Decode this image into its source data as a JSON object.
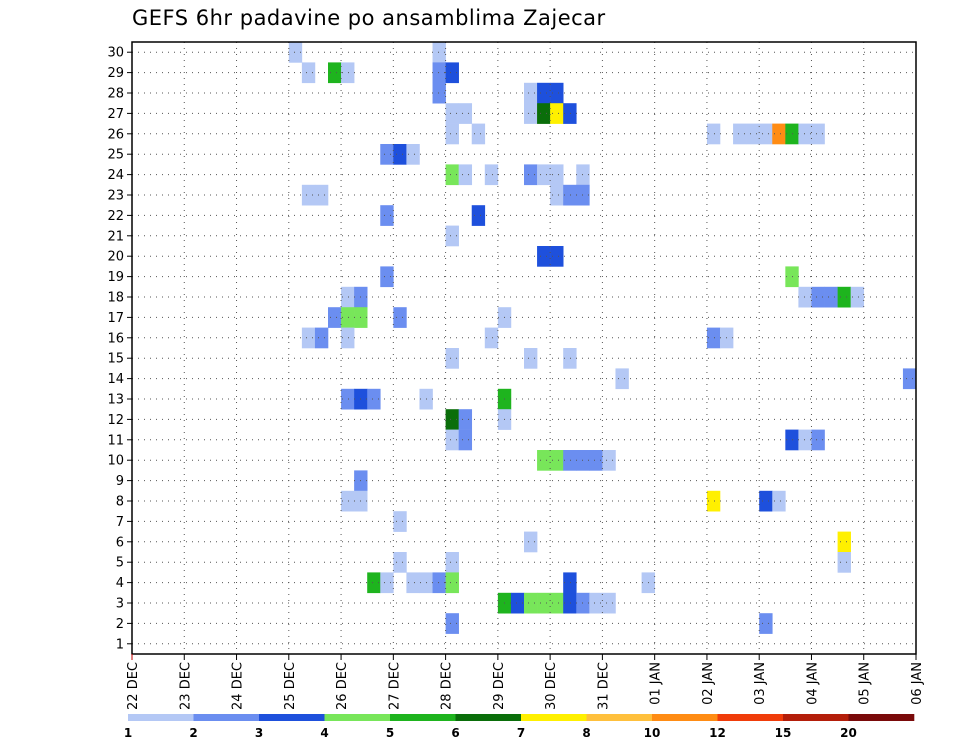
{
  "chart_data": {
    "type": "heatmap",
    "title": "GEFS 6hr padavine po ansamblima Zajecar",
    "x_tick_labels": [
      "22 DEC",
      "23 DEC",
      "24 DEC",
      "25 DEC",
      "26 DEC",
      "27 DEC",
      "28 DEC",
      "29 DEC",
      "30 DEC",
      "31 DEC",
      "01 JAN",
      "02 JAN",
      "03 JAN",
      "04 JAN",
      "05 JAN",
      "06 JAN"
    ],
    "time_step_hours": 6,
    "x_range_steps": [
      0,
      60
    ],
    "y_range_members": [
      1,
      30
    ],
    "y_tick_labels": [
      "1",
      "2",
      "3",
      "4",
      "5",
      "6",
      "7",
      "8",
      "9",
      "10",
      "11",
      "12",
      "13",
      "14",
      "15",
      "16",
      "17",
      "18",
      "19",
      "20",
      "21",
      "22",
      "23",
      "24",
      "25",
      "26",
      "27",
      "28",
      "29",
      "30"
    ],
    "grid": "dotted",
    "colorbar": {
      "position": "bottom",
      "labels": [
        "1",
        "2",
        "3",
        "4",
        "5",
        "6",
        "7",
        "8",
        "10",
        "12",
        "15",
        "20"
      ],
      "colors": [
        "#b4c8f5",
        "#6b8ef0",
        "#1e50dc",
        "#78e65a",
        "#1eb41e",
        "#0a6e0a",
        "#fff000",
        "#ffc03c",
        "#ff8c14",
        "#f03c0a",
        "#b41e0a",
        "#7a0a0a"
      ]
    },
    "level_thresholds": [
      1,
      2,
      3,
      4,
      5,
      6,
      7,
      8,
      10,
      12,
      15,
      20
    ],
    "cells": [
      [
        30,
        12,
        1
      ],
      [
        30,
        23,
        1
      ],
      [
        29,
        13,
        1
      ],
      [
        29,
        15,
        5
      ],
      [
        29,
        16,
        1
      ],
      [
        29,
        23,
        2
      ],
      [
        29,
        24,
        3
      ],
      [
        28,
        23,
        2
      ],
      [
        28,
        30,
        1
      ],
      [
        28,
        31,
        3
      ],
      [
        28,
        32,
        3
      ],
      [
        27,
        24,
        1
      ],
      [
        27,
        25,
        1
      ],
      [
        27,
        30,
        1
      ],
      [
        27,
        31,
        6
      ],
      [
        27,
        32,
        7
      ],
      [
        27,
        33,
        3
      ],
      [
        26,
        24,
        1
      ],
      [
        26,
        26,
        1
      ],
      [
        26,
        44,
        1
      ],
      [
        26,
        46,
        1
      ],
      [
        26,
        47,
        1
      ],
      [
        26,
        48,
        1
      ],
      [
        26,
        49,
        9
      ],
      [
        26,
        50,
        5
      ],
      [
        26,
        51,
        1
      ],
      [
        26,
        52,
        1
      ],
      [
        25,
        19,
        2
      ],
      [
        25,
        20,
        3
      ],
      [
        25,
        21,
        1
      ],
      [
        24,
        24,
        4
      ],
      [
        24,
        25,
        1
      ],
      [
        24,
        27,
        1
      ],
      [
        24,
        30,
        2
      ],
      [
        24,
        31,
        1
      ],
      [
        24,
        32,
        1
      ],
      [
        24,
        34,
        1
      ],
      [
        23,
        13,
        1
      ],
      [
        23,
        14,
        1
      ],
      [
        23,
        32,
        1
      ],
      [
        23,
        33,
        2
      ],
      [
        23,
        34,
        2
      ],
      [
        22,
        19,
        2
      ],
      [
        22,
        26,
        3
      ],
      [
        21,
        24,
        1
      ],
      [
        20,
        31,
        3
      ],
      [
        20,
        32,
        3
      ],
      [
        19,
        19,
        2
      ],
      [
        19,
        50,
        4
      ],
      [
        18,
        16,
        1
      ],
      [
        18,
        17,
        2
      ],
      [
        18,
        51,
        1
      ],
      [
        18,
        52,
        2
      ],
      [
        18,
        53,
        2
      ],
      [
        18,
        54,
        5
      ],
      [
        18,
        55,
        1
      ],
      [
        17,
        15,
        2
      ],
      [
        17,
        16,
        4
      ],
      [
        17,
        17,
        4
      ],
      [
        17,
        20,
        2
      ],
      [
        17,
        28,
        1
      ],
      [
        16,
        13,
        1
      ],
      [
        16,
        14,
        2
      ],
      [
        16,
        16,
        1
      ],
      [
        16,
        27,
        1
      ],
      [
        16,
        44,
        2
      ],
      [
        16,
        45,
        1
      ],
      [
        15,
        24,
        1
      ],
      [
        15,
        30,
        1
      ],
      [
        15,
        33,
        1
      ],
      [
        14,
        37,
        1
      ],
      [
        14,
        59,
        2
      ],
      [
        13,
        16,
        2
      ],
      [
        13,
        17,
        3
      ],
      [
        13,
        18,
        2
      ],
      [
        13,
        22,
        1
      ],
      [
        13,
        28,
        5
      ],
      [
        12,
        24,
        6
      ],
      [
        12,
        25,
        2
      ],
      [
        12,
        28,
        1
      ],
      [
        11,
        24,
        1
      ],
      [
        11,
        25,
        2
      ],
      [
        11,
        50,
        3
      ],
      [
        11,
        51,
        1
      ],
      [
        11,
        52,
        2
      ],
      [
        10,
        31,
        4
      ],
      [
        10,
        32,
        4
      ],
      [
        10,
        33,
        2
      ],
      [
        10,
        34,
        2
      ],
      [
        10,
        35,
        2
      ],
      [
        10,
        36,
        1
      ],
      [
        9,
        17,
        2
      ],
      [
        8,
        16,
        1
      ],
      [
        8,
        17,
        1
      ],
      [
        8,
        44,
        7
      ],
      [
        8,
        48,
        3
      ],
      [
        8,
        49,
        1
      ],
      [
        7,
        20,
        1
      ],
      [
        6,
        30,
        1
      ],
      [
        6,
        54,
        7
      ],
      [
        5,
        20,
        1
      ],
      [
        5,
        24,
        1
      ],
      [
        5,
        54,
        1
      ],
      [
        4,
        18,
        5
      ],
      [
        4,
        19,
        1
      ],
      [
        4,
        21,
        1
      ],
      [
        4,
        22,
        1
      ],
      [
        4,
        23,
        2
      ],
      [
        4,
        24,
        4
      ],
      [
        4,
        33,
        3
      ],
      [
        4,
        39,
        1
      ],
      [
        3,
        28,
        5
      ],
      [
        3,
        29,
        3
      ],
      [
        3,
        30,
        4
      ],
      [
        3,
        31,
        4
      ],
      [
        3,
        32,
        4
      ],
      [
        3,
        33,
        3
      ],
      [
        3,
        34,
        2
      ],
      [
        3,
        35,
        1
      ],
      [
        3,
        36,
        1
      ],
      [
        2,
        24,
        2
      ],
      [
        2,
        48,
        2
      ]
    ]
  }
}
